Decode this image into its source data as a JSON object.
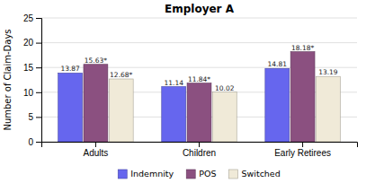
{
  "chart_data": {
    "type": "bar",
    "title": "Employer A",
    "y_label": "Number of Claim-Days",
    "categories": [
      "Adults",
      "Children",
      "Early Retirees"
    ],
    "series": [
      {
        "name": "Indemnity",
        "color": "#6666ee",
        "values": [
          13.87,
          11.14,
          14.81
        ]
      },
      {
        "name": "POS",
        "color": "#8b5080",
        "values": [
          15.63,
          11.84,
          18.18
        ],
        "value_labels": [
          "15.63*",
          "11.84*",
          "18.18*"
        ]
      },
      {
        "name": "Switched",
        "color": "#f0ead8",
        "values": [
          12.68,
          10.02,
          13.19
        ],
        "value_labels": [
          "12.68*",
          "10.02",
          "13.19"
        ]
      }
    ],
    "ylim": [
      0,
      25
    ],
    "yticks": [
      0,
      5,
      10,
      15,
      20,
      25
    ],
    "grid": true,
    "legend": "bottom",
    "data_labels": true
  }
}
